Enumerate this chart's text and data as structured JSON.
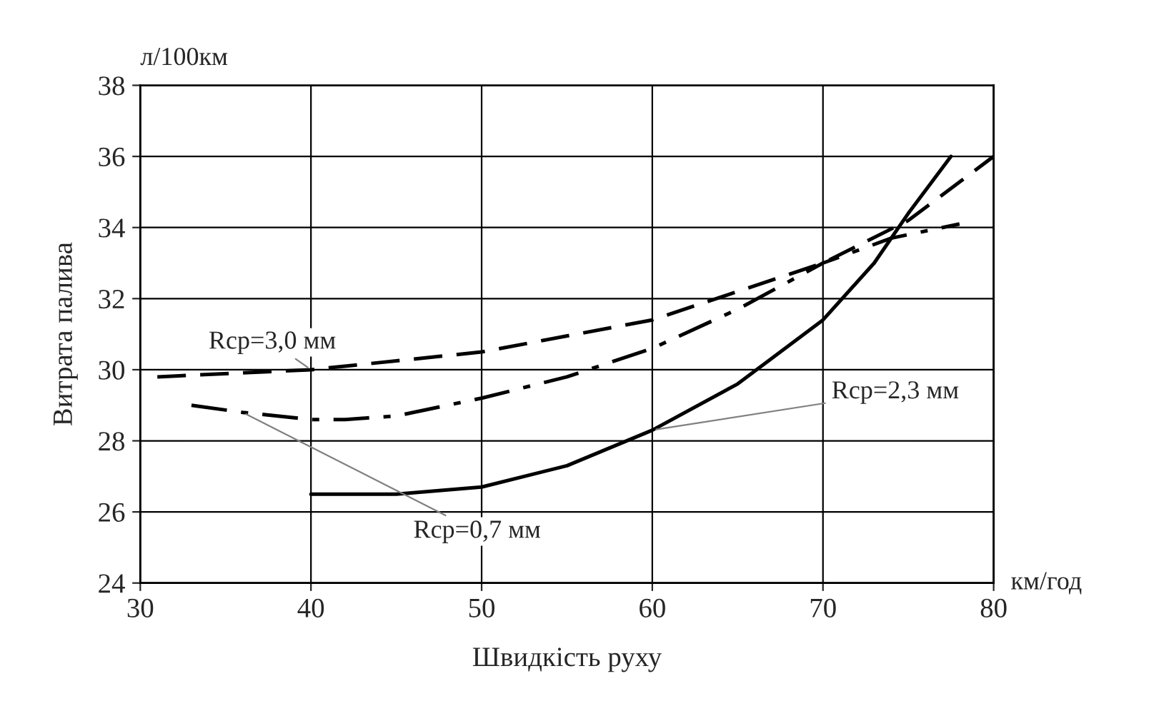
{
  "chart_data": {
    "type": "line",
    "xlabel": "Швидкість руху",
    "ylabel": "Витрата палива",
    "annotations": [
      "л/100км",
      "км/год"
    ],
    "xlim": [
      30,
      80
    ],
    "xticks": [
      30,
      40,
      50,
      60,
      70,
      80
    ],
    "ylim": [
      24,
      38
    ],
    "yticks": [
      24,
      26,
      28,
      30,
      32,
      34,
      36,
      38
    ],
    "grid": true,
    "legend": false,
    "series": [
      {
        "name": "Rcp=3,0 мм",
        "color": "#000000",
        "line_style": "dashed",
        "x": [
          31,
          40,
          50,
          60,
          70,
          75,
          80
        ],
        "values": [
          29.8,
          30.0,
          30.5,
          31.4,
          33.0,
          34.2,
          36.0
        ]
      },
      {
        "name": "Rcp=0,7 мм",
        "color": "#000000",
        "line_style": "dashdot",
        "x": [
          33,
          36,
          40,
          42,
          45,
          50,
          55,
          60,
          65,
          70,
          74,
          78
        ],
        "values": [
          29.0,
          28.8,
          28.6,
          28.6,
          28.7,
          29.2,
          29.8,
          30.6,
          31.7,
          33.0,
          33.7,
          34.1
        ]
      },
      {
        "name": "Rcp=2,3 мм",
        "color": "#000000",
        "line_style": "solid",
        "x": [
          40,
          45,
          50,
          55,
          60,
          65,
          70,
          73,
          75,
          77.5
        ],
        "values": [
          26.5,
          26.5,
          26.7,
          27.3,
          28.3,
          29.6,
          31.4,
          33.0,
          34.4,
          36.0
        ]
      }
    ]
  }
}
